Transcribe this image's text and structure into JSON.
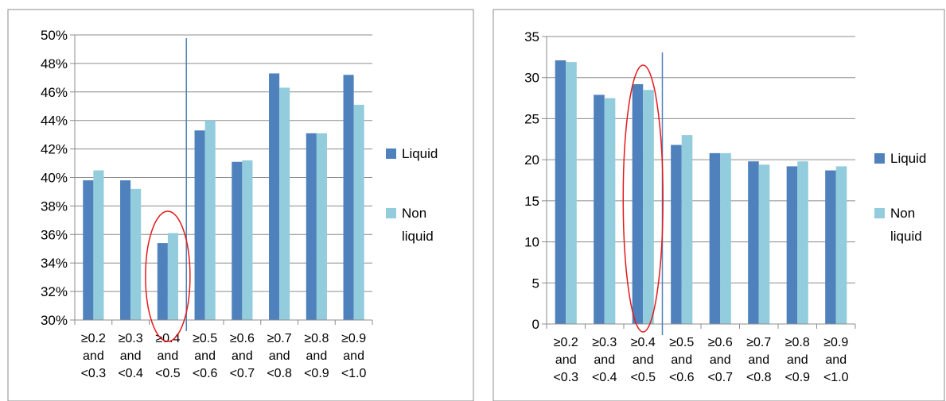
{
  "chart_data": [
    {
      "type": "bar",
      "categories": [
        [
          "≥0.2",
          "and",
          "<0.3"
        ],
        [
          "≥0.3",
          "and",
          "<0.4"
        ],
        [
          "≥0.4",
          "and",
          "<0.5"
        ],
        [
          "≥0.5",
          "and",
          "<0.6"
        ],
        [
          "≥0.6",
          "and",
          "<0.7"
        ],
        [
          "≥0.7",
          "and",
          "<0.8"
        ],
        [
          "≥0.8",
          "and",
          "<0.9"
        ],
        [
          "≥0.9",
          "and",
          "<1.0"
        ]
      ],
      "series": [
        {
          "name": "Liquid",
          "color": "#4f81bd",
          "values": [
            39.8,
            39.8,
            35.4,
            43.3,
            41.1,
            47.3,
            43.1,
            47.2
          ]
        },
        {
          "name": "Non liquid",
          "color": "#93cddd",
          "values": [
            40.5,
            39.2,
            36.1,
            44.0,
            41.2,
            46.3,
            43.1,
            45.1
          ]
        }
      ],
      "ylim": [
        30,
        50
      ],
      "yticks": [
        30,
        32,
        34,
        36,
        38,
        40,
        42,
        44,
        46,
        48,
        50
      ],
      "ytick_labels": [
        "30%",
        "32%",
        "34%",
        "36%",
        "38%",
        "40%",
        "42%",
        "44%",
        "46%",
        "48%",
        "50%"
      ],
      "grid": true,
      "legend": {
        "placement": "right",
        "entries": [
          {
            "lines": [
              "Liquid"
            ],
            "color": "#4f81bd"
          },
          {
            "lines": [
              "Non",
              "liquid"
            ],
            "color": "#93cddd"
          }
        ]
      },
      "annotations": {
        "highlight_category": 2,
        "highlight_color": "#e31a1c",
        "divider_after_category": 2,
        "divider_color": "#4f81bd"
      }
    },
    {
      "type": "bar",
      "categories": [
        [
          "≥0.2",
          "and",
          "<0.3"
        ],
        [
          "≥0.3",
          "and",
          "<0.4"
        ],
        [
          "≥0.4",
          "and",
          "<0.5"
        ],
        [
          "≥0.5",
          "and",
          "<0.6"
        ],
        [
          "≥0.6",
          "and",
          "<0.7"
        ],
        [
          "≥0.7",
          "and",
          "<0.8"
        ],
        [
          "≥0.8",
          "and",
          "<0.9"
        ],
        [
          "≥0.9",
          "and",
          "<1.0"
        ]
      ],
      "series": [
        {
          "name": "Liquid",
          "color": "#4f81bd",
          "values": [
            32.1,
            27.9,
            29.2,
            21.8,
            20.8,
            19.8,
            19.2,
            18.7
          ]
        },
        {
          "name": "Non liquid",
          "color": "#93cddd",
          "values": [
            31.9,
            27.5,
            28.5,
            23.0,
            20.8,
            19.4,
            19.8,
            19.2
          ]
        }
      ],
      "ylim": [
        0,
        35
      ],
      "yticks": [
        0,
        5,
        10,
        15,
        20,
        25,
        30,
        35
      ],
      "ytick_labels": [
        "0",
        "5",
        "10",
        "15",
        "20",
        "25",
        "30",
        "35"
      ],
      "grid": true,
      "legend": {
        "placement": "right",
        "entries": [
          {
            "lines": [
              "Liquid"
            ],
            "color": "#4f81bd"
          },
          {
            "lines": [
              "Non",
              "liquid"
            ],
            "color": "#93cddd"
          }
        ]
      },
      "annotations": {
        "highlight_category": 2,
        "highlight_color": "#e31a1c",
        "divider_after_category": 2,
        "divider_color": "#4f81bd"
      }
    }
  ]
}
